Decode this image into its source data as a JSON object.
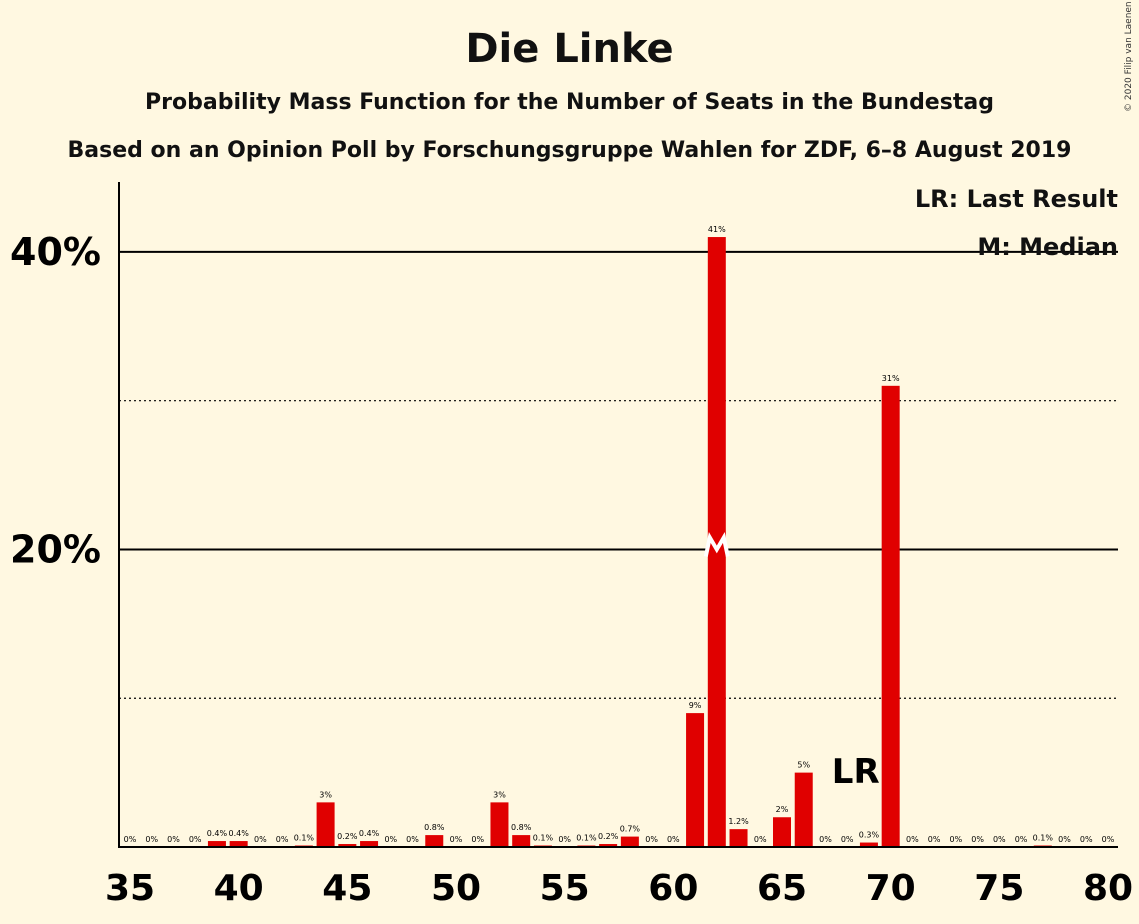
{
  "title": "Die Linke",
  "subtitle1": "Probability Mass Function for the Number of Seats in the Bundestag",
  "subtitle2": "Based on an Opinion Poll by Forschungsgruppe Wahlen for ZDF, 6–8 August 2019",
  "copyright": "© 2020 Filip van Laenen",
  "legend": {
    "last_result": "LR: Last Result",
    "median": "M: Median"
  },
  "colors": {
    "bar": "#e00000",
    "background": "#fff8e1",
    "axis": "#000000"
  },
  "chart_data": {
    "type": "bar",
    "title": "Die Linke",
    "xlabel": "",
    "ylabel": "",
    "x": [
      35,
      36,
      37,
      38,
      39,
      40,
      41,
      42,
      43,
      44,
      45,
      46,
      47,
      48,
      49,
      50,
      51,
      52,
      53,
      54,
      55,
      56,
      57,
      58,
      59,
      60,
      61,
      62,
      63,
      64,
      65,
      66,
      67,
      68,
      69,
      70,
      71,
      72,
      73,
      74,
      75,
      76,
      77,
      78,
      79,
      80
    ],
    "values": [
      0,
      0,
      0,
      0,
      0.4,
      0.4,
      0,
      0,
      0.1,
      3,
      0.2,
      0.4,
      0,
      0,
      0.8,
      0,
      0,
      3,
      0.8,
      0.1,
      0,
      0.1,
      0.2,
      0.7,
      0,
      0,
      9,
      41,
      1.2,
      0,
      2,
      5,
      0,
      0,
      0.3,
      31,
      0,
      0,
      0,
      0,
      0,
      0,
      0.1,
      0,
      0,
      0
    ],
    "labels": [
      "0%",
      "0%",
      "0%",
      "0%",
      "0.4%",
      "0.4%",
      "0%",
      "0%",
      "0.1%",
      "3%",
      "0.2%",
      "0.4%",
      "0%",
      "0%",
      "0.8%",
      "0%",
      "0%",
      "3%",
      "0.8%",
      "0.1%",
      "0%",
      "0.1%",
      "0.2%",
      "0.7%",
      "0%",
      "0%",
      "9%",
      "41%",
      "1.2%",
      "0%",
      "2%",
      "5%",
      "0%",
      "0%",
      "0.3%",
      "31%",
      "0%",
      "0%",
      "0%",
      "0%",
      "0%",
      "0%",
      "0.1%",
      "0%",
      "0%",
      "0%"
    ],
    "x_ticks": [
      35,
      40,
      45,
      50,
      55,
      60,
      65,
      70,
      75,
      80
    ],
    "y_ticks": [
      {
        "value": 40,
        "label": "40%",
        "style": "solid"
      },
      {
        "value": 30,
        "label": "",
        "style": "dotted"
      },
      {
        "value": 20,
        "label": "20%",
        "style": "solid"
      },
      {
        "value": 10,
        "label": "",
        "style": "dotted"
      }
    ],
    "ylim": [
      0,
      44.7
    ],
    "median": 62,
    "median_marker": "M",
    "last_result": 70,
    "last_result_marker": "LR"
  }
}
